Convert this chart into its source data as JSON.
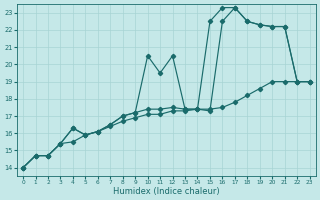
{
  "bg_color": "#c5e8e8",
  "line_color": "#1a6b6b",
  "grid_color": "#a8d4d4",
  "xlabel": "Humidex (Indice chaleur)",
  "xlim": [
    -0.5,
    23.5
  ],
  "ylim": [
    13.5,
    23.5
  ],
  "yticks": [
    14,
    15,
    16,
    17,
    18,
    19,
    20,
    21,
    22,
    23
  ],
  "line1_x": [
    0,
    1,
    2,
    3,
    4,
    5,
    6,
    7,
    8,
    9,
    10,
    11,
    12,
    13,
    14,
    15,
    16,
    17,
    18,
    19,
    20,
    21,
    22,
    23
  ],
  "line1_y": [
    14.0,
    14.7,
    14.7,
    15.4,
    15.5,
    15.9,
    16.1,
    16.4,
    16.7,
    16.9,
    17.1,
    17.1,
    17.3,
    17.3,
    17.4,
    17.4,
    17.5,
    17.8,
    18.2,
    18.6,
    19.0,
    19.0,
    19.0,
    19.0
  ],
  "line2_x": [
    0,
    1,
    2,
    3,
    4,
    5,
    6,
    7,
    8,
    9,
    10,
    11,
    12,
    13,
    14,
    15,
    16,
    17,
    18,
    19,
    20,
    21,
    22,
    23
  ],
  "line2_y": [
    14.0,
    14.7,
    14.7,
    15.4,
    16.3,
    15.9,
    16.1,
    16.5,
    17.0,
    17.2,
    17.4,
    17.4,
    17.5,
    17.4,
    17.4,
    17.3,
    22.5,
    23.3,
    22.5,
    22.3,
    22.2,
    22.2,
    19.0,
    19.0
  ],
  "line3_x": [
    0,
    1,
    2,
    3,
    4,
    5,
    6,
    7,
    8,
    9,
    10,
    11,
    12,
    13,
    14,
    15,
    16,
    17,
    18,
    19,
    20,
    21,
    22,
    23
  ],
  "line3_y": [
    14.0,
    14.7,
    14.7,
    15.4,
    16.3,
    15.9,
    16.1,
    16.5,
    17.0,
    17.2,
    20.5,
    19.5,
    20.5,
    17.4,
    17.4,
    22.5,
    23.3,
    23.3,
    22.5,
    22.3,
    22.2,
    22.2,
    19.0,
    19.0
  ]
}
